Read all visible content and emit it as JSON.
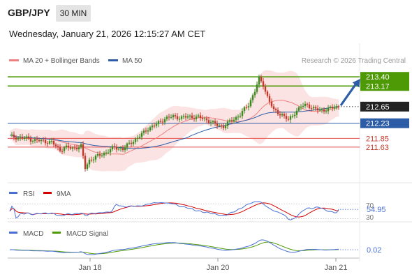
{
  "header": {
    "symbol": "GBP/JPY",
    "timeframe": "30 MIN",
    "datetime": "Wednesday, January 21, 2026 12:15:27 AM CET"
  },
  "legend": {
    "ma20": "MA 20 + Bollinger Bands",
    "ma50": "MA 50",
    "ma20_color": "#f08080",
    "ma50_color": "#2e5da8",
    "credit": "Research © 2026 Trading Central"
  },
  "chart_data": [
    {
      "type": "candlestick",
      "title": "GBP/JPY",
      "ylim": [
        210.8,
        213.65
      ],
      "x_labels": [
        "Jan 18",
        "Jan 20",
        "Jan 21"
      ],
      "current_price": 212.65,
      "levels": [
        {
          "value": 213.4,
          "label": "213.40",
          "kind": "resistance",
          "color": "#4e9a06"
        },
        {
          "value": 213.17,
          "label": "213.17",
          "kind": "resistance",
          "color": "#4e9a06"
        },
        {
          "value": 212.23,
          "label": "212.23",
          "kind": "pivot",
          "color": "#2e5da8"
        },
        {
          "value": 211.85,
          "label": "211.85",
          "kind": "support",
          "color": "#e05050"
        },
        {
          "value": 211.63,
          "label": "211.63",
          "kind": "support",
          "color": "#e05050"
        }
      ],
      "close_path": [
        [
          0,
          211.9
        ],
        [
          4,
          211.87
        ],
        [
          8,
          211.85
        ],
        [
          12,
          211.8
        ],
        [
          16,
          211.78
        ],
        [
          20,
          211.75
        ],
        [
          24,
          211.55
        ],
        [
          26,
          211.62
        ],
        [
          30,
          211.6
        ],
        [
          34,
          211.65
        ],
        [
          36,
          211.1
        ],
        [
          38,
          211.3
        ],
        [
          42,
          211.4
        ],
        [
          46,
          211.5
        ],
        [
          50,
          211.62
        ],
        [
          54,
          211.58
        ],
        [
          58,
          211.75
        ],
        [
          62,
          211.9
        ],
        [
          66,
          212.1
        ],
        [
          70,
          212.2
        ],
        [
          74,
          212.35
        ],
        [
          78,
          212.4
        ],
        [
          82,
          212.37
        ],
        [
          86,
          212.4
        ],
        [
          90,
          212.38
        ],
        [
          94,
          212.32
        ],
        [
          98,
          212.2
        ],
        [
          102,
          212.15
        ],
        [
          106,
          212.3
        ],
        [
          110,
          212.45
        ],
        [
          114,
          212.7
        ],
        [
          117,
          213.05
        ],
        [
          119,
          213.35
        ],
        [
          121,
          213.2
        ],
        [
          123,
          212.9
        ],
        [
          126,
          212.55
        ],
        [
          130,
          212.45
        ],
        [
          133,
          212.3
        ],
        [
          136,
          212.5
        ],
        [
          139,
          212.65
        ],
        [
          142,
          212.7
        ],
        [
          145,
          212.6
        ],
        [
          148,
          212.55
        ],
        [
          151,
          212.58
        ],
        [
          155,
          212.63
        ],
        [
          157,
          212.65
        ]
      ],
      "projection": [
        [
          157,
          212.68
        ],
        [
          167,
          213.35
        ]
      ]
    },
    {
      "type": "line",
      "title": "RSI",
      "series": [
        {
          "name": "RSI",
          "color": "#4a6fd4"
        },
        {
          "name": "9MA",
          "color": "#d40000"
        }
      ],
      "levels": [
        70,
        30
      ],
      "last_value": 54.95,
      "last_label": "54.95",
      "ylim": [
        25,
        78
      ]
    },
    {
      "type": "line",
      "title": "MACD",
      "series": [
        {
          "name": "MACD",
          "color": "#4a6fd4"
        },
        {
          "name": "MACD Signal",
          "color": "#4e9a06"
        }
      ],
      "last_value": 0.02,
      "last_label": "0.02"
    }
  ],
  "rsi_labels": {
    "l70": "70",
    "l30": "30"
  }
}
